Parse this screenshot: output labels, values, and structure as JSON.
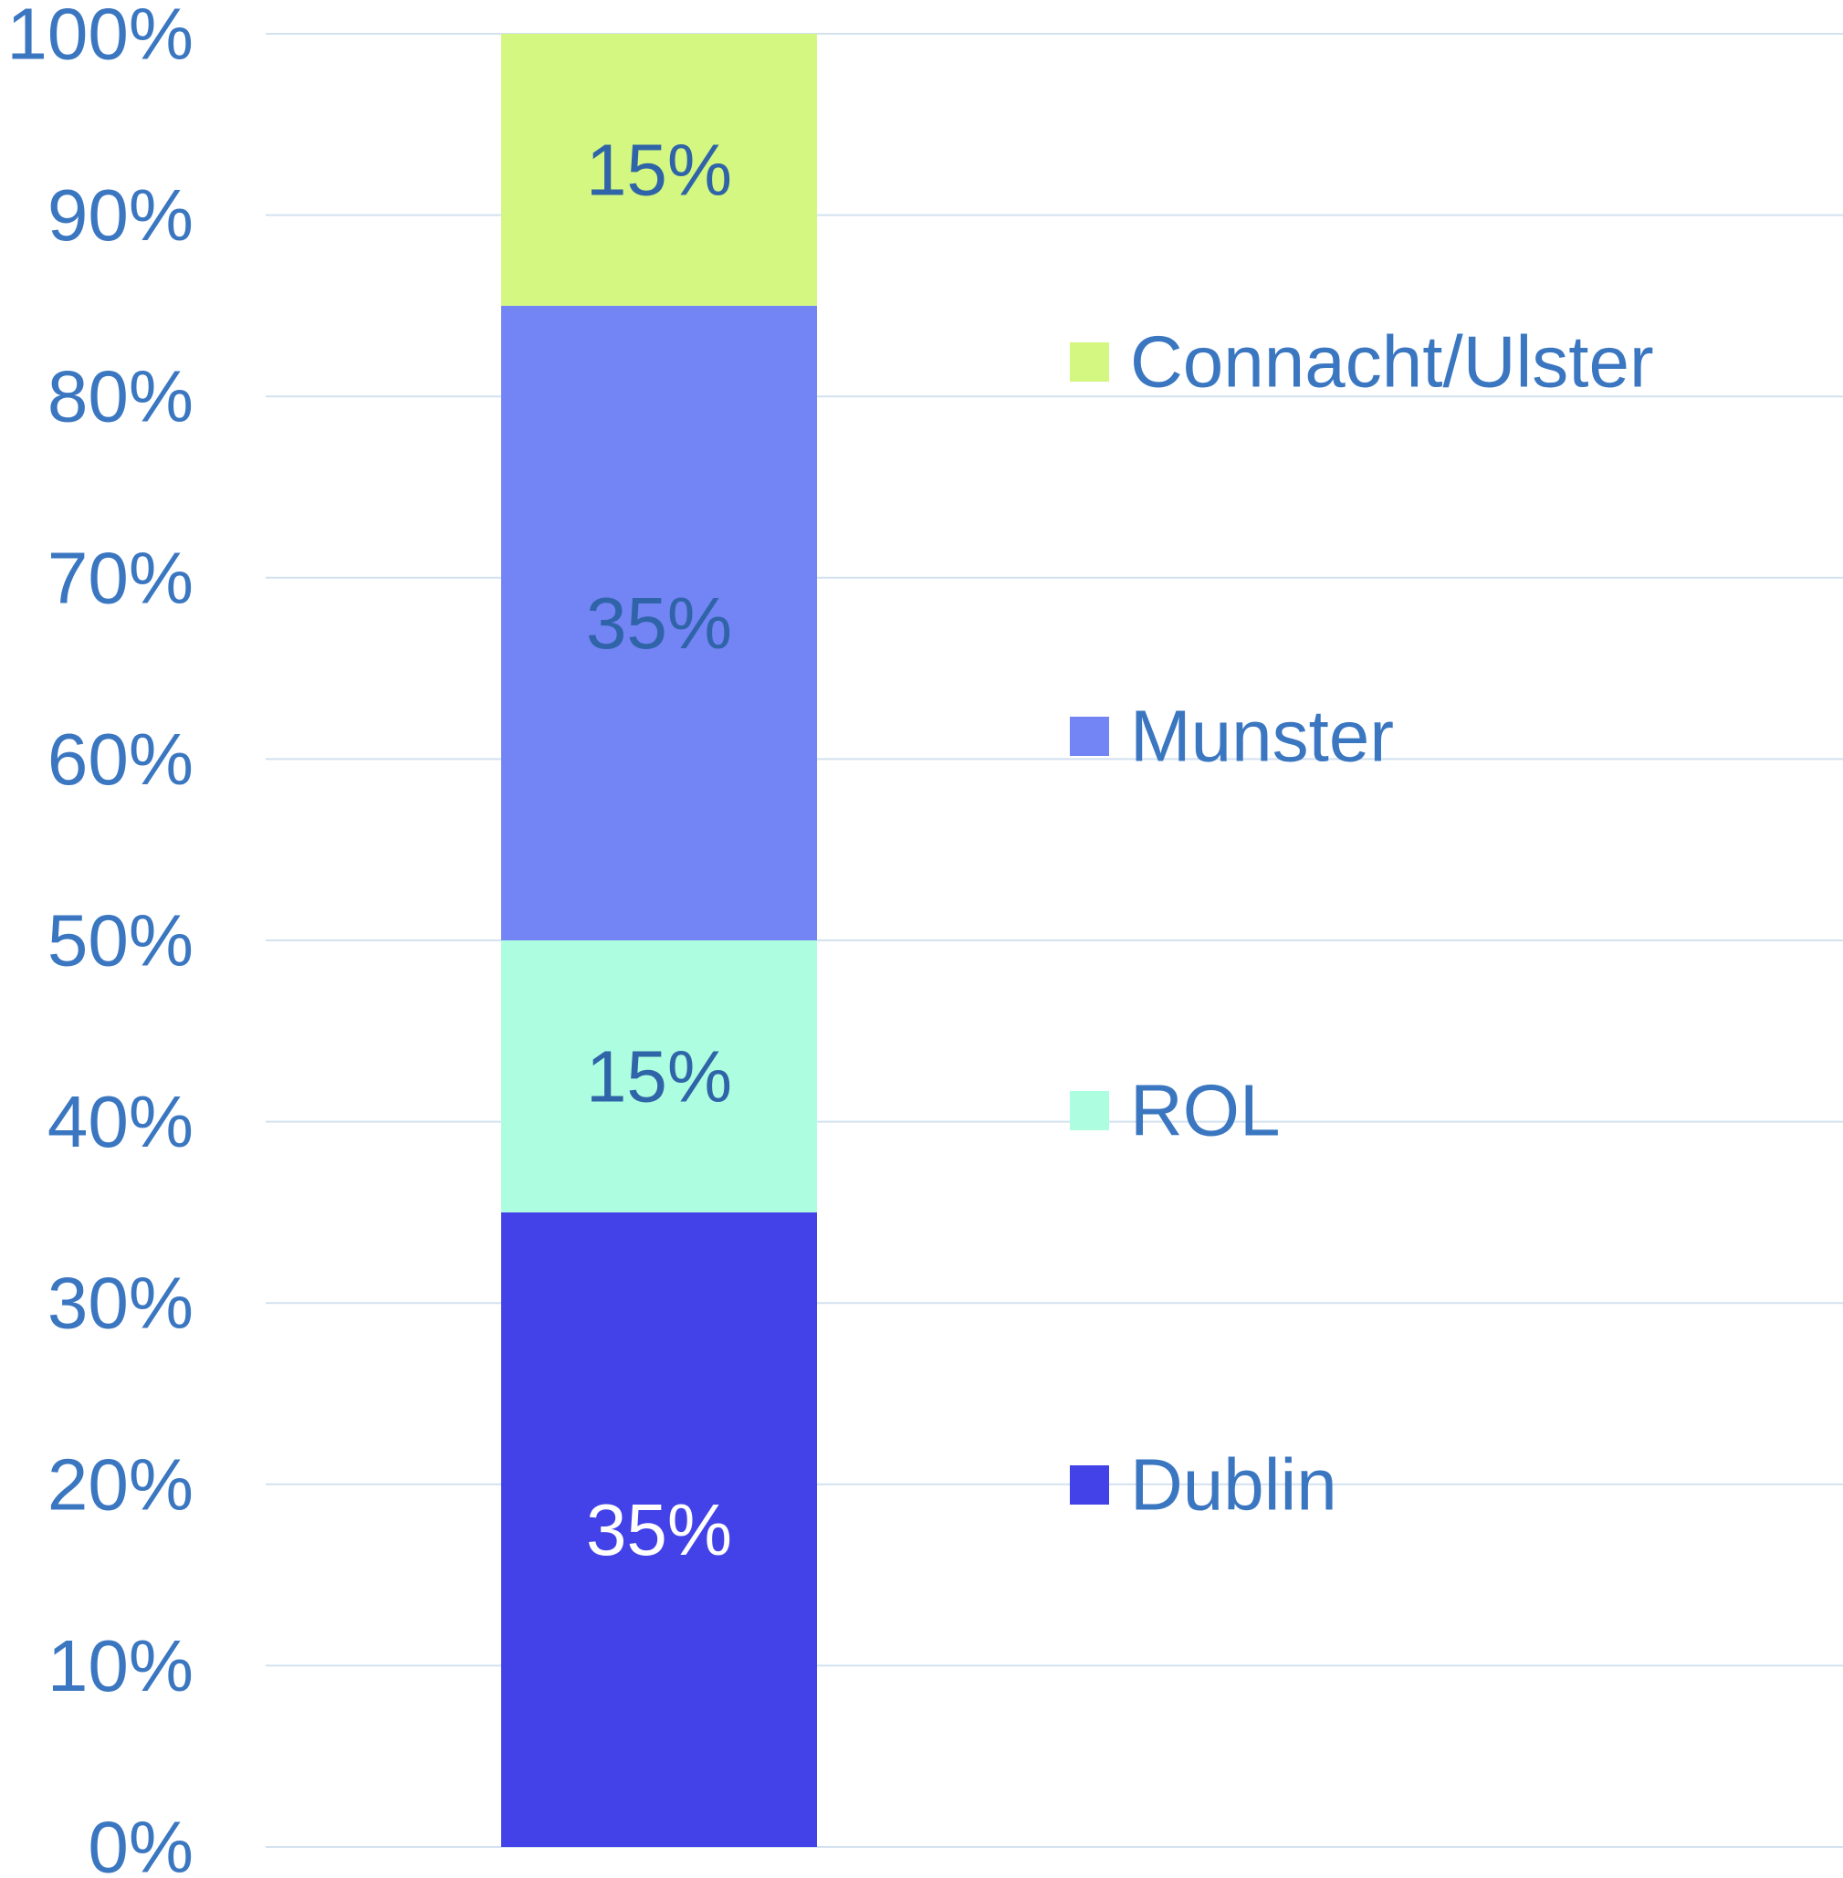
{
  "chart_data": {
    "type": "bar",
    "stacked": true,
    "categories": [
      null
    ],
    "series": [
      {
        "name": "Dublin",
        "color": "#4242e8",
        "label_color": "#ffffff",
        "values": [
          35
        ],
        "value_labels": [
          "35%"
        ]
      },
      {
        "name": "ROL",
        "color": "#adfde0",
        "label_color": "#2f64a8",
        "values": [
          15
        ],
        "value_labels": [
          "15%"
        ]
      },
      {
        "name": "Munster",
        "color": "#7384f5",
        "label_color": "#2f64a8",
        "values": [
          35
        ],
        "value_labels": [
          "35%"
        ]
      },
      {
        "name": "Connacht/Ulster",
        "color": "#d3f780",
        "label_color": "#2f64a8",
        "values": [
          15
        ],
        "value_labels": [
          "15%"
        ]
      }
    ],
    "ylim": [
      0,
      100
    ],
    "yticks": [
      {
        "value": 0,
        "label": "0%"
      },
      {
        "value": 10,
        "label": "10%"
      },
      {
        "value": 20,
        "label": "20%"
      },
      {
        "value": 30,
        "label": "30%"
      },
      {
        "value": 40,
        "label": "40%"
      },
      {
        "value": 50,
        "label": "50%"
      },
      {
        "value": 60,
        "label": "60%"
      },
      {
        "value": 70,
        "label": "70%"
      },
      {
        "value": 80,
        "label": "80%"
      },
      {
        "value": 90,
        "label": "90%"
      },
      {
        "value": 100,
        "label": "100%"
      }
    ],
    "grid": true,
    "grid_color": "#d3e1f0",
    "legend": "right"
  }
}
